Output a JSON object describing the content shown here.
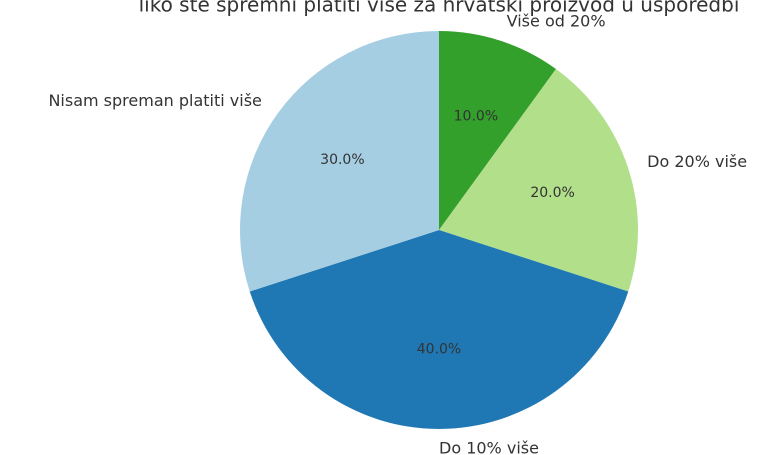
{
  "chart_data": {
    "type": "pie",
    "title": "liko ste spremni platiti više za hrvatski proizvod u usporedbi",
    "categories": [
      "Više od 20%",
      "Do 20% više",
      "Do 10% više",
      "Nisam spreman platiti više"
    ],
    "values": [
      10,
      20,
      40,
      30
    ],
    "value_labels": [
      "10.0%",
      "20.0%",
      "40.0%",
      "30.0%"
    ],
    "colors": [
      "#33a02c",
      "#b2df8a",
      "#1f78b4",
      "#a6cee3"
    ]
  }
}
